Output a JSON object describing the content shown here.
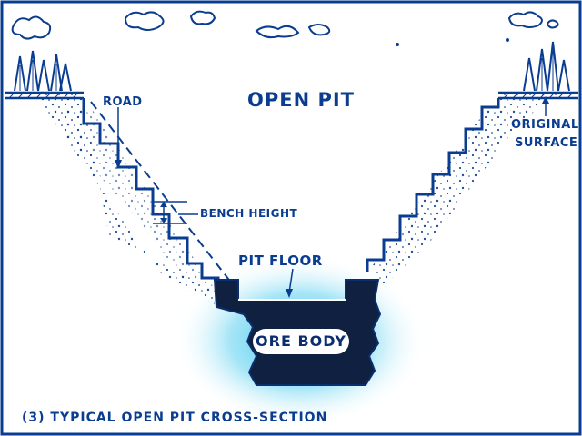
{
  "colors": {
    "ink": "#0a3d8f",
    "ore_body": "#102040",
    "glow": "#22b8e8",
    "background": "#ffffff"
  },
  "diagram": {
    "title": "OPEN PIT",
    "labels": {
      "road": "ROAD",
      "original_surface_line1": "ORIGINAL",
      "original_surface_line2": "SURFACE",
      "bench_height": "BENCH HEIGHT",
      "pit_floor": "PIT FLOOR",
      "ore_body": "ORE BODY"
    },
    "caption": "(3) TYPICAL OPEN PIT CROSS-SECTION"
  }
}
